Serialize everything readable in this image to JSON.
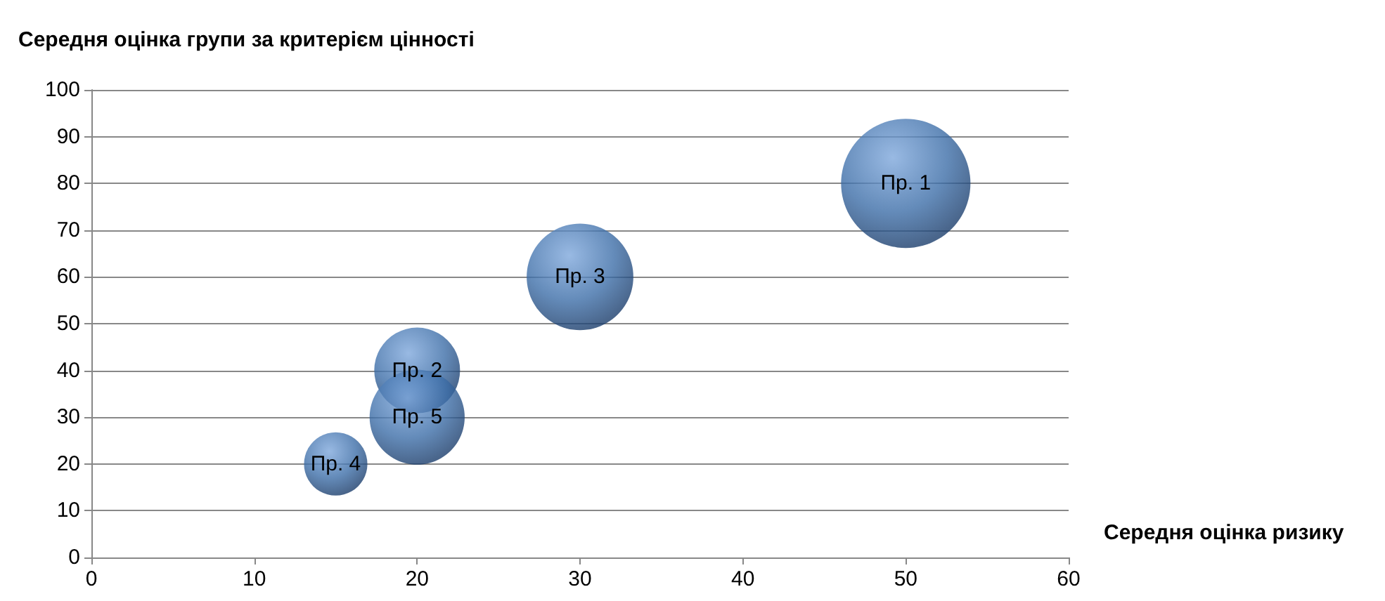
{
  "chart_data": {
    "type": "bubble",
    "xlabel": "Середня оцінка ризику",
    "ylabel": "Середня оцінка групи за критерієм цінності",
    "x": [
      50,
      30,
      20,
      20,
      15
    ],
    "values": [
      80,
      60,
      40,
      30,
      20
    ],
    "sizes": [
      1,
      0.68,
      0.44,
      0.54,
      0.24
    ],
    "color": "#3d6ea8",
    "xlim": [
      0,
      60
    ],
    "xticks": [
      0,
      10,
      20,
      30,
      40,
      50,
      60
    ],
    "ylim": [
      0,
      100
    ],
    "yticks": [
      0,
      10,
      20,
      30,
      40,
      50,
      60,
      70,
      80,
      90,
      100
    ],
    "grid": "y",
    "annotations": [
      {
        "text": "Пр. 1",
        "x": 50,
        "y": 80
      },
      {
        "text": "Пр. 3",
        "x": 30,
        "y": 60
      },
      {
        "text": "Пр. 2",
        "x": 20,
        "y": 40
      },
      {
        "text": "Пр. 5",
        "x": 20,
        "y": 30
      },
      {
        "text": "Пр. 4",
        "x": 15,
        "y": 20
      }
    ]
  }
}
